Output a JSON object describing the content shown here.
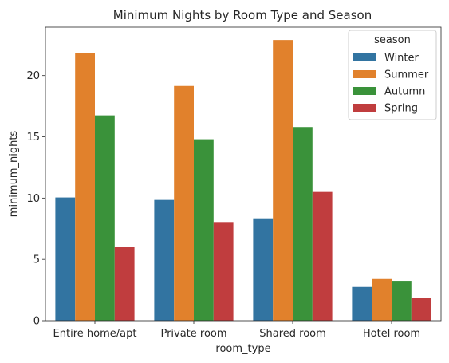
{
  "chart_data": {
    "type": "bar",
    "title": "Minimum Nights by Room Type and Season",
    "xlabel": "room_type",
    "ylabel": "minimum_nights",
    "categories": [
      "Entire home/apt",
      "Private room",
      "Shared room",
      "Hotel room"
    ],
    "ylim": [
      0,
      23.95
    ],
    "yticks": [
      0,
      5,
      10,
      15,
      20
    ],
    "grid": false,
    "legend": {
      "title": "season",
      "placement": "top-right"
    },
    "series": [
      {
        "name": "Winter",
        "color": "#3274a1",
        "values": [
          10.05,
          9.85,
          8.35,
          2.75
        ]
      },
      {
        "name": "Summer",
        "color": "#e1812c",
        "values": [
          21.85,
          19.15,
          22.9,
          3.4
        ]
      },
      {
        "name": "Autumn",
        "color": "#3a923a",
        "values": [
          16.75,
          14.8,
          15.8,
          3.25
        ]
      },
      {
        "name": "Spring",
        "color": "#c03d3e",
        "values": [
          6.0,
          8.05,
          10.5,
          1.85
        ]
      }
    ]
  }
}
